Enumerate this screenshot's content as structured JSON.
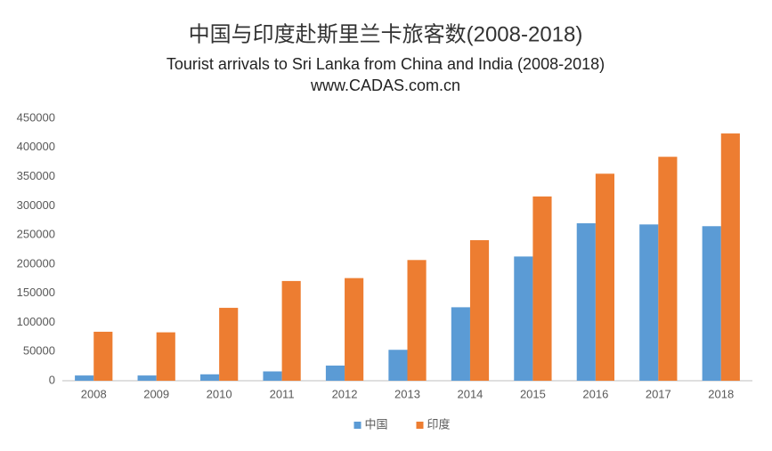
{
  "chart_data": {
    "type": "bar",
    "title": "中国与印度赴斯里兰卡旅客数(2008-2018)",
    "subtitle": "Tourist arrivals to Sri Lanka from China and India (2008-2018)",
    "source": "www.CADAS.com.cn",
    "categories": [
      "2008",
      "2009",
      "2010",
      "2011",
      "2012",
      "2013",
      "2014",
      "2015",
      "2016",
      "2017",
      "2018"
    ],
    "series": [
      {
        "name": "中国",
        "color": "#5b9bd5",
        "values": [
          9000,
          9000,
          11000,
          16000,
          26000,
          53000,
          126000,
          213000,
          270000,
          268000,
          265000
        ]
      },
      {
        "name": "印度",
        "color": "#ed7d31",
        "values": [
          84000,
          83000,
          125000,
          171000,
          176000,
          207000,
          241000,
          316000,
          355000,
          384000,
          424000
        ]
      }
    ],
    "ylim": [
      0,
      450000
    ],
    "yticks": [
      0,
      50000,
      100000,
      150000,
      200000,
      250000,
      300000,
      350000,
      400000,
      450000
    ],
    "grid": false,
    "legend": "bottom"
  }
}
